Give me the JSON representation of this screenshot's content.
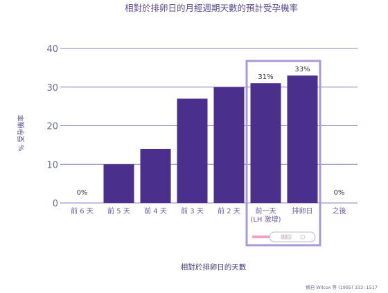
{
  "chart_data": {
    "type": "bar",
    "title": "相對於排卵日的月經週期天數的預計受孕機率",
    "ylabel": "% 受孕機率",
    "xlabel": "相對於排卵日的天數",
    "ylim": [
      0,
      40
    ],
    "yticks": [
      0,
      10,
      20,
      30,
      40
    ],
    "grid": true,
    "categories": [
      "前 6 天",
      "前 5 天",
      "前 4 天",
      "前 3 天",
      "前 2 天",
      "前一天\n(LH 激增)",
      "排卵日",
      "之後"
    ],
    "values": [
      0,
      10,
      14,
      27,
      30,
      31,
      33,
      0
    ],
    "data_labels": [
      "0%",
      "",
      "",
      "",
      "",
      "31%",
      "33%",
      "0%"
    ],
    "bar_color": "#4a2f8c",
    "highlight_color": "#a99ad6",
    "source": "摘自 Wilcox 等 (1995) 333: 1517"
  }
}
